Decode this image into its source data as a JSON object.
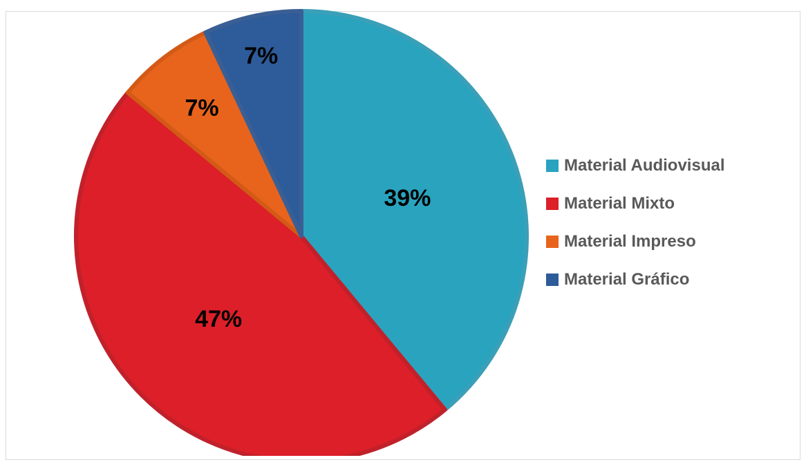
{
  "chart_data": {
    "type": "pie",
    "title": "",
    "legend_position": "right",
    "slices": [
      {
        "label": "Material Audiovisual",
        "value": 39,
        "display": "39%",
        "color": "#2aa3bf",
        "border": "#3b9fb8"
      },
      {
        "label": "Material Mixto",
        "value": 47,
        "display": "47%",
        "color": "#dc1f28",
        "border": "#c0212b"
      },
      {
        "label": "Material Impreso",
        "value": 7,
        "display": "7%",
        "color": "#e8641c",
        "border": "#d35a16"
      },
      {
        "label": "Material Gráfico",
        "value": 7,
        "display": "7%",
        "color": "#2e5b99",
        "border": "#3a5f94"
      }
    ]
  },
  "legend": {
    "items": [
      {
        "label": "Material Audiovisual",
        "color": "#2aa3bf"
      },
      {
        "label": "Material Mixto",
        "color": "#dc1f28"
      },
      {
        "label": "Material Impreso",
        "color": "#e8641c"
      },
      {
        "label": "Material Gráfico",
        "color": "#2e5b99"
      }
    ]
  }
}
